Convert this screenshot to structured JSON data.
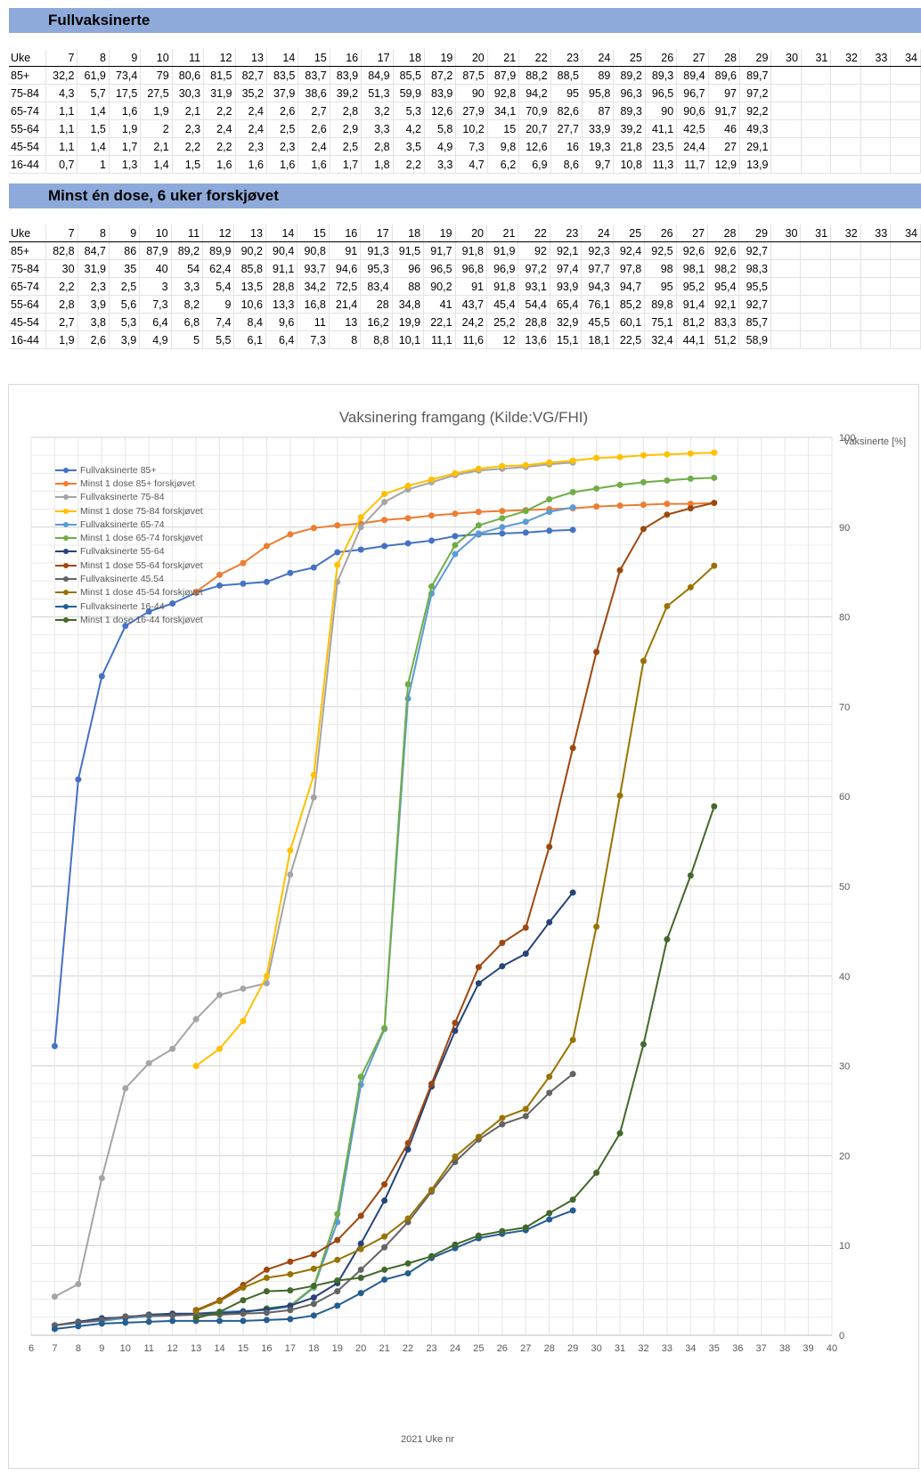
{
  "section1": {
    "title": "Fullvaksinerte"
  },
  "section2": {
    "title": "Minst én dose, 6 uker forskjøvet"
  },
  "table_header_label": "Uke",
  "weeks": [
    7,
    8,
    9,
    10,
    11,
    12,
    13,
    14,
    15,
    16,
    17,
    18,
    19,
    20,
    21,
    22,
    23,
    24,
    25,
    26,
    27,
    28,
    29,
    30,
    31,
    32,
    33,
    34
  ],
  "table1_rows": [
    {
      "label": "85+",
      "values": [
        "32,2",
        "61,9",
        "73,4",
        "79",
        "80,6",
        "81,5",
        "82,7",
        "83,5",
        "83,7",
        "83,9",
        "84,9",
        "85,5",
        "87,2",
        "87,5",
        "87,9",
        "88,2",
        "88,5",
        "89",
        "89,2",
        "89,3",
        "89,4",
        "89,6",
        "89,7"
      ]
    },
    {
      "label": "75-84",
      "values": [
        "4,3",
        "5,7",
        "17,5",
        "27,5",
        "30,3",
        "31,9",
        "35,2",
        "37,9",
        "38,6",
        "39,2",
        "51,3",
        "59,9",
        "83,9",
        "90",
        "92,8",
        "94,2",
        "95",
        "95,8",
        "96,3",
        "96,5",
        "96,7",
        "97",
        "97,2"
      ]
    },
    {
      "label": "65-74",
      "values": [
        "1,1",
        "1,4",
        "1,6",
        "1,9",
        "2,1",
        "2,2",
        "2,4",
        "2,6",
        "2,7",
        "2,8",
        "3,2",
        "5,3",
        "12,6",
        "27,9",
        "34,1",
        "70,9",
        "82,6",
        "87",
        "89,3",
        "90",
        "90,6",
        "91,7",
        "92,2"
      ]
    },
    {
      "label": "55-64",
      "values": [
        "1,1",
        "1,5",
        "1,9",
        "2",
        "2,3",
        "2,4",
        "2,4",
        "2,5",
        "2,6",
        "2,9",
        "3,3",
        "4,2",
        "5,8",
        "10,2",
        "15",
        "20,7",
        "27,7",
        "33,9",
        "39,2",
        "41,1",
        "42,5",
        "46",
        "49,3"
      ]
    },
    {
      "label": "45-54",
      "values": [
        "1,1",
        "1,4",
        "1,7",
        "2,1",
        "2,2",
        "2,2",
        "2,3",
        "2,3",
        "2,4",
        "2,5",
        "2,8",
        "3,5",
        "4,9",
        "7,3",
        "9,8",
        "12,6",
        "16",
        "19,3",
        "21,8",
        "23,5",
        "24,4",
        "27",
        "29,1"
      ]
    },
    {
      "label": "16-44",
      "values": [
        "0,7",
        "1",
        "1,3",
        "1,4",
        "1,5",
        "1,6",
        "1,6",
        "1,6",
        "1,6",
        "1,7",
        "1,8",
        "2,2",
        "3,3",
        "4,7",
        "6,2",
        "6,9",
        "8,6",
        "9,7",
        "10,8",
        "11,3",
        "11,7",
        "12,9",
        "13,9"
      ]
    }
  ],
  "table2_rows": [
    {
      "label": "85+",
      "values": [
        "82,8",
        "84,7",
        "86",
        "87,9",
        "89,2",
        "89,9",
        "90,2",
        "90,4",
        "90,8",
        "91",
        "91,3",
        "91,5",
        "91,7",
        "91,8",
        "91,9",
        "92",
        "92,1",
        "92,3",
        "92,4",
        "92,5",
        "92,6",
        "92,6",
        "92,7"
      ]
    },
    {
      "label": "75-84",
      "values": [
        "30",
        "31,9",
        "35",
        "40",
        "54",
        "62,4",
        "85,8",
        "91,1",
        "93,7",
        "94,6",
        "95,3",
        "96",
        "96,5",
        "96,8",
        "96,9",
        "97,2",
        "97,4",
        "97,7",
        "97,8",
        "98",
        "98,1",
        "98,2",
        "98,3"
      ]
    },
    {
      "label": "65-74",
      "values": [
        "2,2",
        "2,3",
        "2,5",
        "3",
        "3,3",
        "5,4",
        "13,5",
        "28,8",
        "34,2",
        "72,5",
        "83,4",
        "88",
        "90,2",
        "91",
        "91,8",
        "93,1",
        "93,9",
        "94,3",
        "94,7",
        "95",
        "95,2",
        "95,4",
        "95,5"
      ]
    },
    {
      "label": "55-64",
      "values": [
        "2,8",
        "3,9",
        "5,6",
        "7,3",
        "8,2",
        "9",
        "10,6",
        "13,3",
        "16,8",
        "21,4",
        "28",
        "34,8",
        "41",
        "43,7",
        "45,4",
        "54,4",
        "65,4",
        "76,1",
        "85,2",
        "89,8",
        "91,4",
        "92,1",
        "92,7"
      ]
    },
    {
      "label": "45-54",
      "values": [
        "2,7",
        "3,8",
        "5,3",
        "6,4",
        "6,8",
        "7,4",
        "8,4",
        "9,6",
        "11",
        "13",
        "16,2",
        "19,9",
        "22,1",
        "24,2",
        "25,2",
        "28,8",
        "32,9",
        "45,5",
        "60,1",
        "75,1",
        "81,2",
        "83,3",
        "85,7"
      ]
    },
    {
      "label": "16-44",
      "values": [
        "1,9",
        "2,6",
        "3,9",
        "4,9",
        "5",
        "5,5",
        "6,1",
        "6,4",
        "7,3",
        "8",
        "8,8",
        "10,1",
        "11,1",
        "11,6",
        "12",
        "13,6",
        "15,1",
        "18,1",
        "22,5",
        "32,4",
        "44,1",
        "51,2",
        "58,9"
      ]
    }
  ],
  "chart_data": {
    "type": "line",
    "title": "Vaksinering framgang (Kilde:VG/FHI)",
    "xlabel": "2021 Uke nr",
    "ylabel": "Vaksinerte [%]",
    "xlim": [
      6,
      40
    ],
    "ylim": [
      0,
      100
    ],
    "y_axis_side": "right",
    "grid": true,
    "legend_position": "top-left",
    "series": [
      {
        "name": "Fullvaksinerte 85+",
        "color": "#4472c4",
        "x_start": 7,
        "values": [
          32.2,
          61.9,
          73.4,
          79,
          80.6,
          81.5,
          82.7,
          83.5,
          83.7,
          83.9,
          84.9,
          85.5,
          87.2,
          87.5,
          87.9,
          88.2,
          88.5,
          89,
          89.2,
          89.3,
          89.4,
          89.6,
          89.7
        ]
      },
      {
        "name": "Minst 1 dose 85+ forskjøvet",
        "color": "#ed7d31",
        "x_start": 13,
        "values": [
          82.8,
          84.7,
          86,
          87.9,
          89.2,
          89.9,
          90.2,
          90.4,
          90.8,
          91,
          91.3,
          91.5,
          91.7,
          91.8,
          91.9,
          92,
          92.1,
          92.3,
          92.4,
          92.5,
          92.6,
          92.6,
          92.7
        ]
      },
      {
        "name": "Fullvaksinerte 75-84",
        "color": "#a5a5a5",
        "x_start": 7,
        "values": [
          4.3,
          5.7,
          17.5,
          27.5,
          30.3,
          31.9,
          35.2,
          37.9,
          38.6,
          39.2,
          51.3,
          59.9,
          83.9,
          90,
          92.8,
          94.2,
          95,
          95.8,
          96.3,
          96.5,
          96.7,
          97,
          97.2
        ]
      },
      {
        "name": "Minst 1 dose 75-84 forskjøvet",
        "color": "#ffc000",
        "x_start": 13,
        "values": [
          30,
          31.9,
          35,
          40,
          54,
          62.4,
          85.8,
          91.1,
          93.7,
          94.6,
          95.3,
          96,
          96.5,
          96.8,
          96.9,
          97.2,
          97.4,
          97.7,
          97.8,
          98,
          98.1,
          98.2,
          98.3
        ]
      },
      {
        "name": "Fullvaksinerte 65-74",
        "color": "#5b9bd5",
        "x_start": 7,
        "values": [
          1.1,
          1.4,
          1.6,
          1.9,
          2.1,
          2.2,
          2.4,
          2.6,
          2.7,
          2.8,
          3.2,
          5.3,
          12.6,
          27.9,
          34.1,
          70.9,
          82.6,
          87,
          89.3,
          90,
          90.6,
          91.7,
          92.2
        ]
      },
      {
        "name": "Minst 1 dose 65-74 forskjøvet",
        "color": "#70ad47",
        "x_start": 13,
        "values": [
          2.2,
          2.3,
          2.5,
          3,
          3.3,
          5.4,
          13.5,
          28.8,
          34.2,
          72.5,
          83.4,
          88,
          90.2,
          91,
          91.8,
          93.1,
          93.9,
          94.3,
          94.7,
          95,
          95.2,
          95.4,
          95.5
        ]
      },
      {
        "name": "Fullvaksinerte 55-64",
        "color": "#264478",
        "x_start": 7,
        "values": [
          1.1,
          1.5,
          1.9,
          2,
          2.3,
          2.4,
          2.4,
          2.5,
          2.6,
          2.9,
          3.3,
          4.2,
          5.8,
          10.2,
          15,
          20.7,
          27.7,
          33.9,
          39.2,
          41.1,
          42.5,
          46,
          49.3
        ]
      },
      {
        "name": "Minst 1 dose 55-64 forskjøvet",
        "color": "#9e480e",
        "x_start": 13,
        "values": [
          2.8,
          3.9,
          5.6,
          7.3,
          8.2,
          9,
          10.6,
          13.3,
          16.8,
          21.4,
          28,
          34.8,
          41,
          43.7,
          45.4,
          54.4,
          65.4,
          76.1,
          85.2,
          89.8,
          91.4,
          92.1,
          92.7
        ]
      },
      {
        "name": "Fullvaksinerte 45.54",
        "color": "#636363",
        "x_start": 7,
        "values": [
          1.1,
          1.4,
          1.7,
          2.1,
          2.2,
          2.2,
          2.3,
          2.3,
          2.4,
          2.5,
          2.8,
          3.5,
          4.9,
          7.3,
          9.8,
          12.6,
          16,
          19.3,
          21.8,
          23.5,
          24.4,
          27,
          29.1
        ]
      },
      {
        "name": "Minst 1 dose 45-54 forskjøvet",
        "color": "#997300",
        "x_start": 13,
        "values": [
          2.7,
          3.8,
          5.3,
          6.4,
          6.8,
          7.4,
          8.4,
          9.6,
          11,
          13,
          16.2,
          19.9,
          22.1,
          24.2,
          25.2,
          28.8,
          32.9,
          45.5,
          60.1,
          75.1,
          81.2,
          83.3,
          85.7
        ]
      },
      {
        "name": "Fullvaksinerte 16-44",
        "color": "#255e91",
        "x_start": 7,
        "values": [
          0.7,
          1,
          1.3,
          1.4,
          1.5,
          1.6,
          1.6,
          1.6,
          1.6,
          1.7,
          1.8,
          2.2,
          3.3,
          4.7,
          6.2,
          6.9,
          8.6,
          9.7,
          10.8,
          11.3,
          11.7,
          12.9,
          13.9
        ]
      },
      {
        "name": "Minst 1 dose 16-44 forskjøvet",
        "color": "#43682b",
        "x_start": 13,
        "values": [
          1.9,
          2.6,
          3.9,
          4.9,
          5,
          5.5,
          6.1,
          6.4,
          7.3,
          8,
          8.8,
          10.1,
          11.1,
          11.6,
          12,
          13.6,
          15.1,
          18.1,
          22.5,
          32.4,
          44.1,
          51.2,
          58.9
        ]
      }
    ]
  }
}
